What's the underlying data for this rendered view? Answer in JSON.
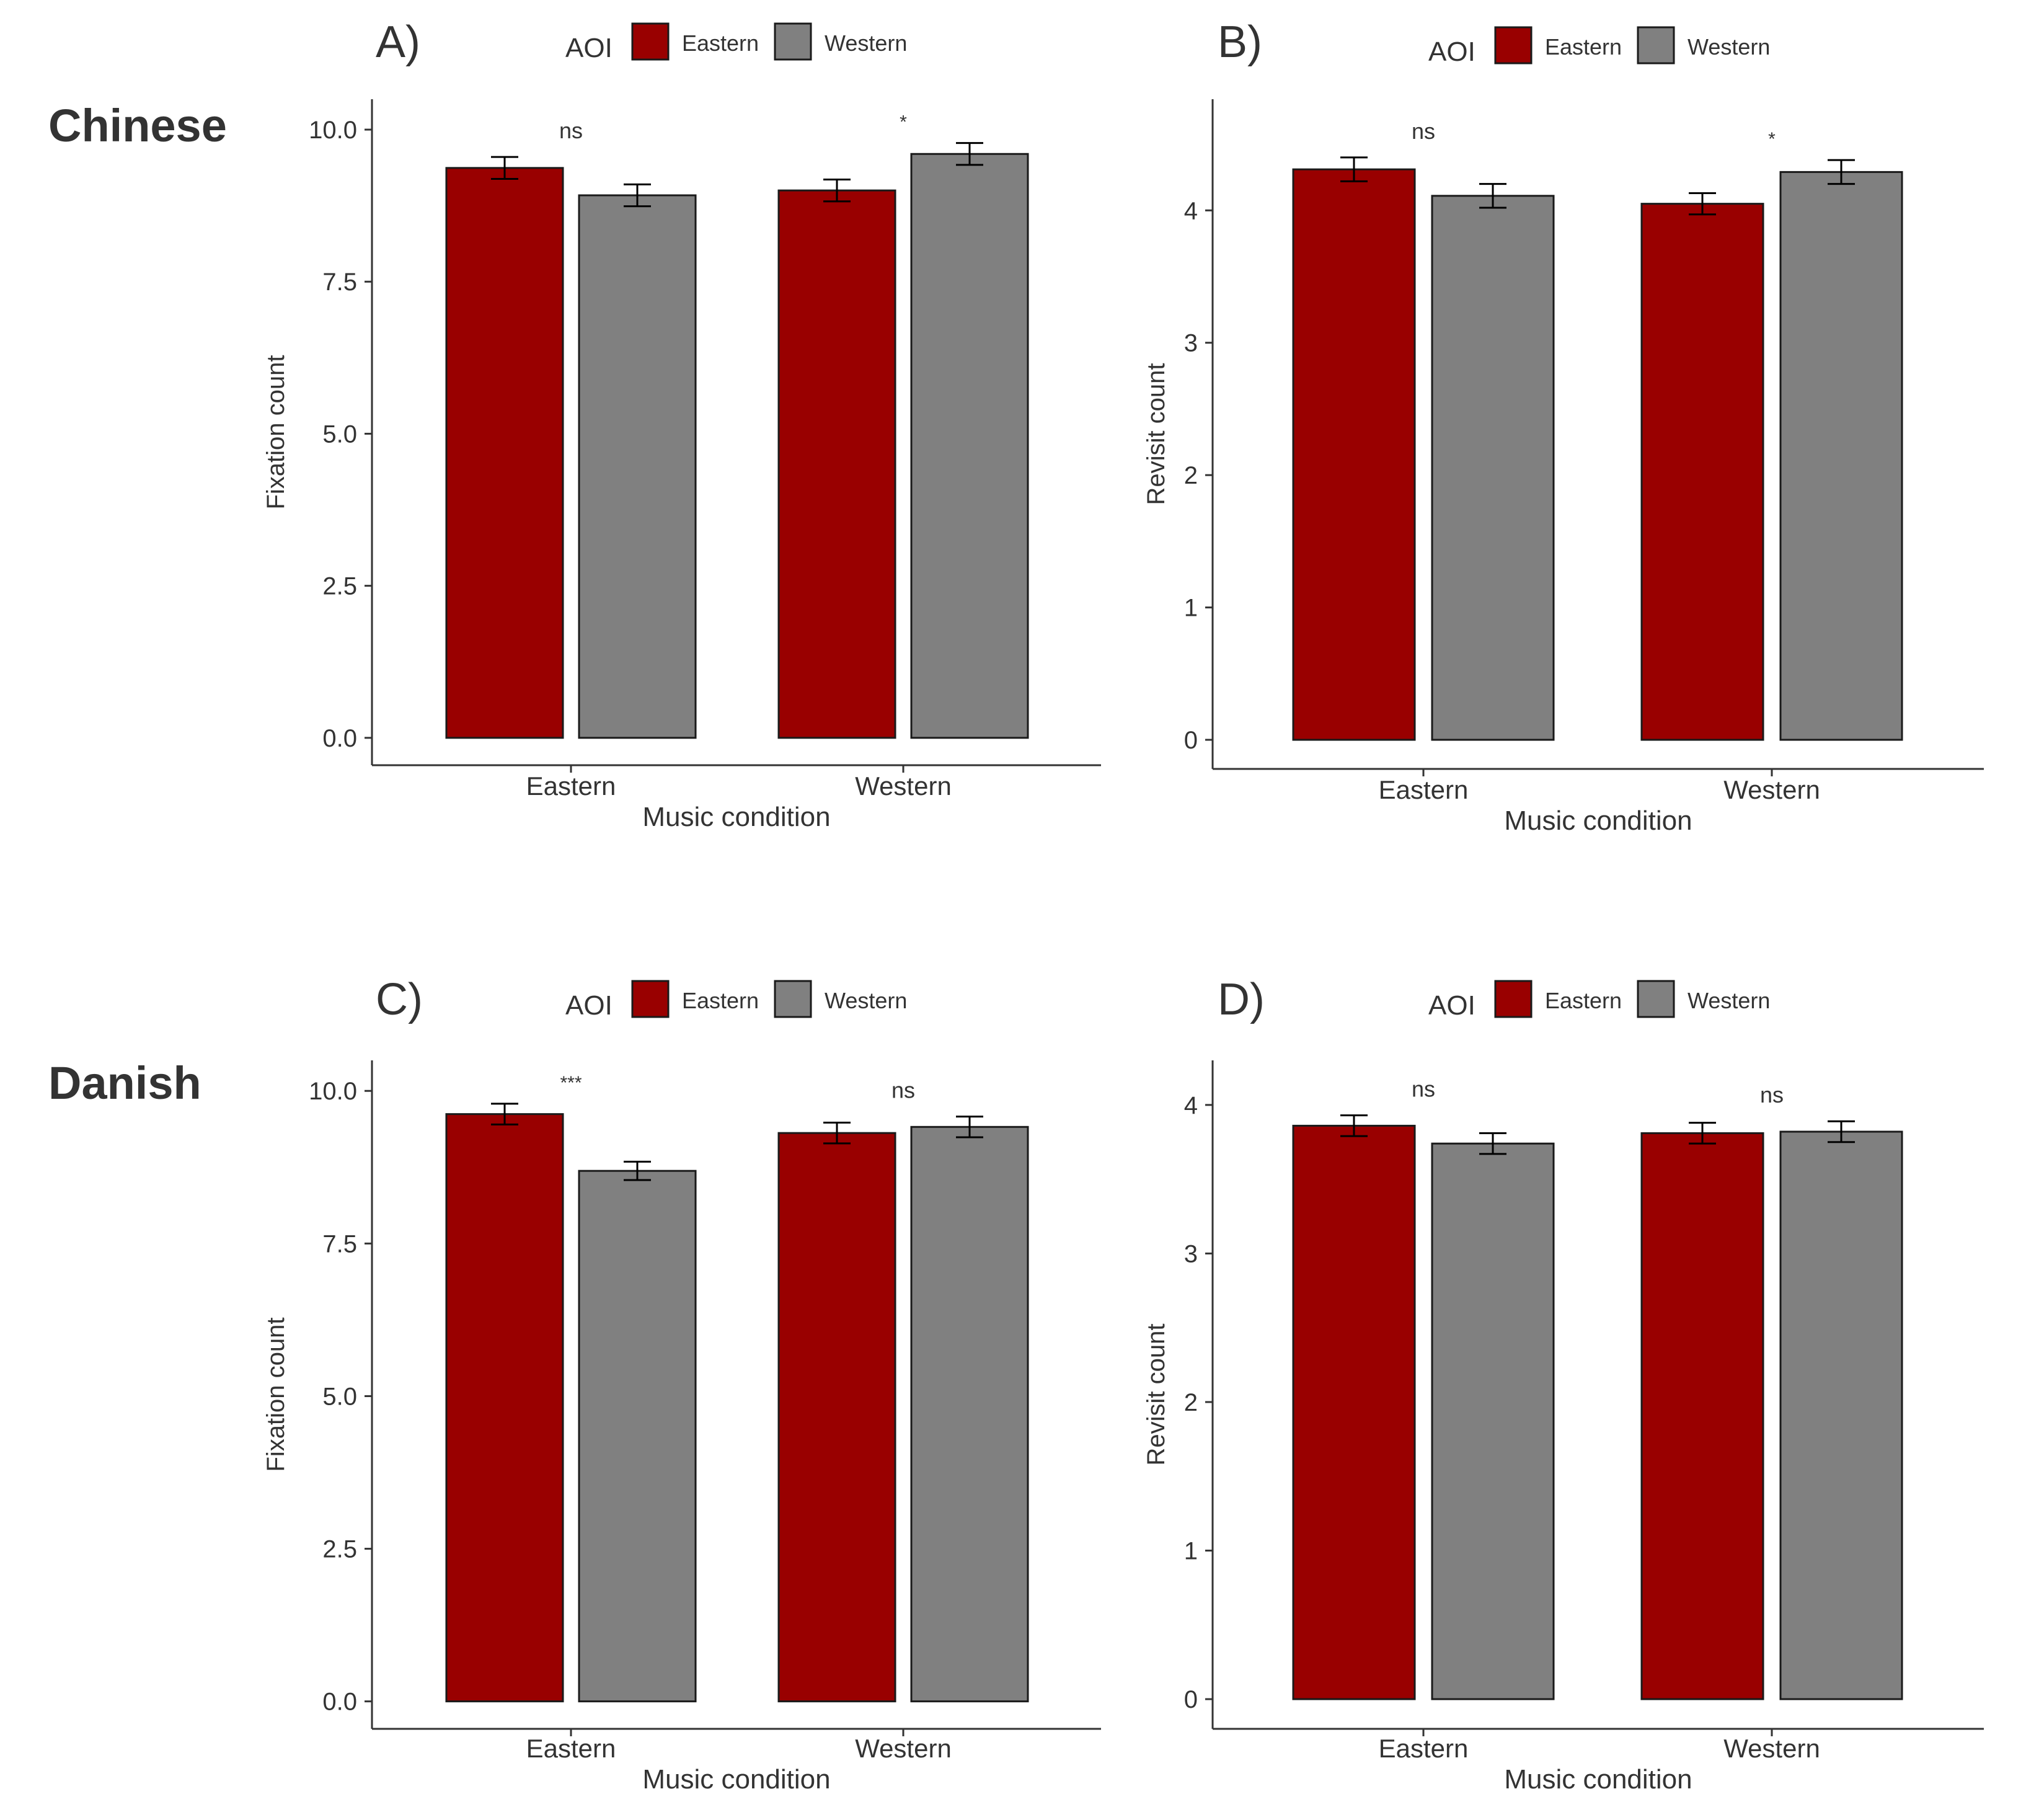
{
  "figure": {
    "row_labels": [
      "Chinese",
      "Danish"
    ],
    "colors": {
      "Eastern": "#990000",
      "Western": "#808080",
      "axis": "#333333",
      "text": "#333333",
      "bar_outline": "#1a1a1a"
    }
  },
  "chart_data": [
    {
      "panel": "A)",
      "type": "bar",
      "legend_title": "AOI",
      "legend": [
        "Eastern",
        "Western"
      ],
      "legend_position": "top",
      "xlabel": "Music condition",
      "ylabel": "Fixation count",
      "categories": [
        "Eastern",
        "Western"
      ],
      "series": [
        {
          "name": "Eastern",
          "values": [
            9.37,
            9.0
          ],
          "errors": [
            0.18,
            0.18
          ]
        },
        {
          "name": "Western",
          "values": [
            8.92,
            9.6
          ],
          "errors": [
            0.18,
            0.18
          ]
        }
      ],
      "ylim": [
        -0.45,
        10.5
      ],
      "yticks": [
        0.0,
        2.5,
        5.0,
        7.5,
        10.0
      ],
      "ytick_labels": [
        "0.0",
        "2.5",
        "5.0",
        "7.5",
        "10.0"
      ],
      "significance": [
        "ns",
        "*"
      ],
      "grid": false
    },
    {
      "panel": "B)",
      "type": "bar",
      "legend_title": "AOI",
      "legend": [
        "Eastern",
        "Western"
      ],
      "legend_position": "top",
      "xlabel": "Music condition",
      "ylabel": "Revisit count",
      "categories": [
        "Eastern",
        "Western"
      ],
      "series": [
        {
          "name": "Eastern",
          "values": [
            4.31,
            4.05
          ],
          "errors": [
            0.09,
            0.08
          ]
        },
        {
          "name": "Western",
          "values": [
            4.11,
            4.29
          ],
          "errors": [
            0.09,
            0.09
          ]
        }
      ],
      "ylim": [
        -0.22,
        4.84
      ],
      "yticks": [
        0,
        1,
        2,
        3,
        4
      ],
      "ytick_labels": [
        "0",
        "1",
        "2",
        "3",
        "4"
      ],
      "significance": [
        "ns",
        "*"
      ],
      "grid": false
    },
    {
      "panel": "C)",
      "type": "bar",
      "legend_title": "AOI",
      "legend": [
        "Eastern",
        "Western"
      ],
      "legend_position": "top",
      "xlabel": "Music condition",
      "ylabel": "Fixation count",
      "categories": [
        "Eastern",
        "Western"
      ],
      "series": [
        {
          "name": "Eastern",
          "values": [
            9.62,
            9.31
          ],
          "errors": [
            0.17,
            0.17
          ]
        },
        {
          "name": "Western",
          "values": [
            8.69,
            9.41
          ],
          "errors": [
            0.15,
            0.17
          ]
        }
      ],
      "ylim": [
        -0.45,
        10.5
      ],
      "yticks": [
        0.0,
        2.5,
        5.0,
        7.5,
        10.0
      ],
      "ytick_labels": [
        "0.0",
        "2.5",
        "5.0",
        "7.5",
        "10.0"
      ],
      "significance": [
        "***",
        "ns"
      ],
      "grid": false
    },
    {
      "panel": "D)",
      "type": "bar",
      "legend_title": "AOI",
      "legend": [
        "Eastern",
        "Western"
      ],
      "legend_position": "top",
      "xlabel": "Music condition",
      "ylabel": "Revisit count",
      "categories": [
        "Eastern",
        "Western"
      ],
      "series": [
        {
          "name": "Eastern",
          "values": [
            3.86,
            3.81
          ],
          "errors": [
            0.07,
            0.07
          ]
        },
        {
          "name": "Western",
          "values": [
            3.74,
            3.82
          ],
          "errors": [
            0.07,
            0.07
          ]
        }
      ],
      "ylim": [
        -0.2,
        4.3
      ],
      "yticks": [
        0,
        1,
        2,
        3,
        4
      ],
      "ytick_labels": [
        "0",
        "1",
        "2",
        "3",
        "4"
      ],
      "significance": [
        "ns",
        "ns"
      ],
      "grid": false
    }
  ]
}
